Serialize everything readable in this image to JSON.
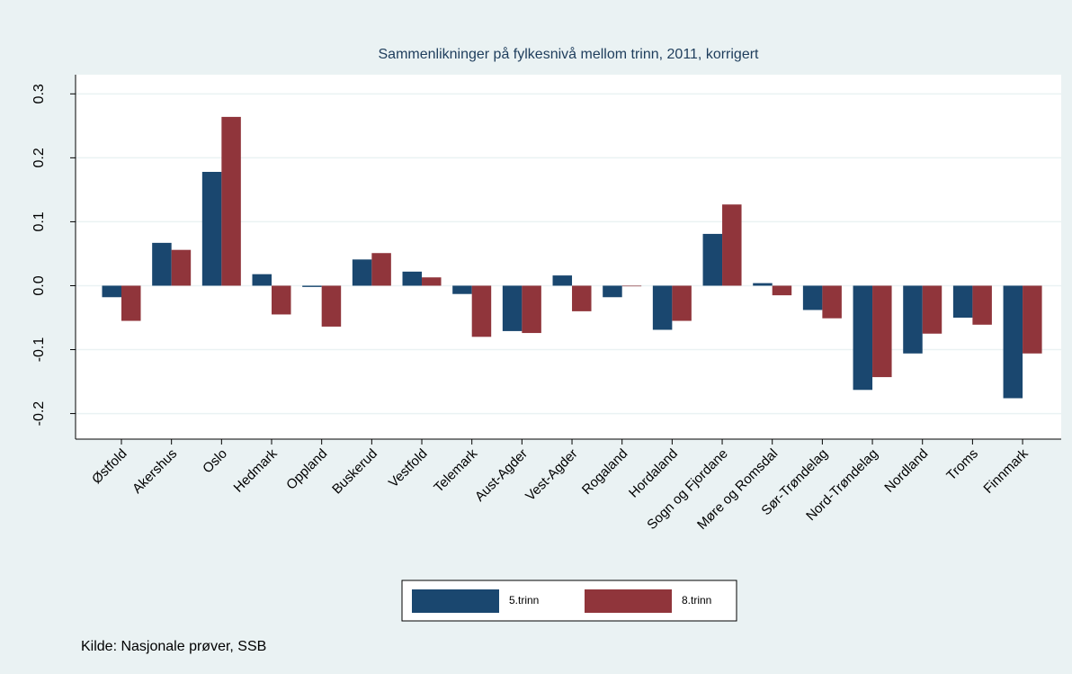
{
  "chart_data": {
    "type": "bar",
    "title": "Sammenlikninger på fylkesnivå mellom trinn, 2011, korrigert",
    "note": "Kilde: Nasjonale prøver, SSB",
    "categories": [
      "Østfold",
      "Akershus",
      "Oslo",
      "Hedmark",
      "Oppland",
      "Buskerud",
      "Vestfold",
      "Telemark",
      "Aust-Agder",
      "Vest-Agder",
      "Rogaland",
      "Hordaland",
      "Sogn og Fjordane",
      "Møre og Romsdal",
      "Sør-Trøndelag",
      "Nord-Trøndelag",
      "Nordland",
      "Troms",
      "Finnmark"
    ],
    "series": [
      {
        "name": "5.trinn",
        "color": "#1a476f",
        "values": [
          -0.018,
          0.067,
          0.178,
          0.018,
          -0.002,
          0.041,
          0.022,
          -0.013,
          -0.071,
          0.016,
          -0.018,
          -0.069,
          0.081,
          0.004,
          -0.038,
          -0.163,
          -0.106,
          -0.05,
          -0.176
        ]
      },
      {
        "name": "8.trinn",
        "color": "#90353b",
        "values": [
          -0.055,
          0.056,
          0.264,
          -0.045,
          -0.064,
          0.051,
          0.013,
          -0.08,
          -0.074,
          -0.04,
          -0.001,
          -0.055,
          0.127,
          -0.015,
          -0.051,
          -0.143,
          -0.075,
          -0.061,
          -0.106
        ]
      }
    ],
    "ylim": [
      -0.24,
      0.33
    ],
    "yticks": [
      -0.2,
      -0.1,
      {
        "value": 0,
        "label": "0.0"
      },
      0.1,
      0.2,
      0.3
    ],
    "grid": true
  }
}
